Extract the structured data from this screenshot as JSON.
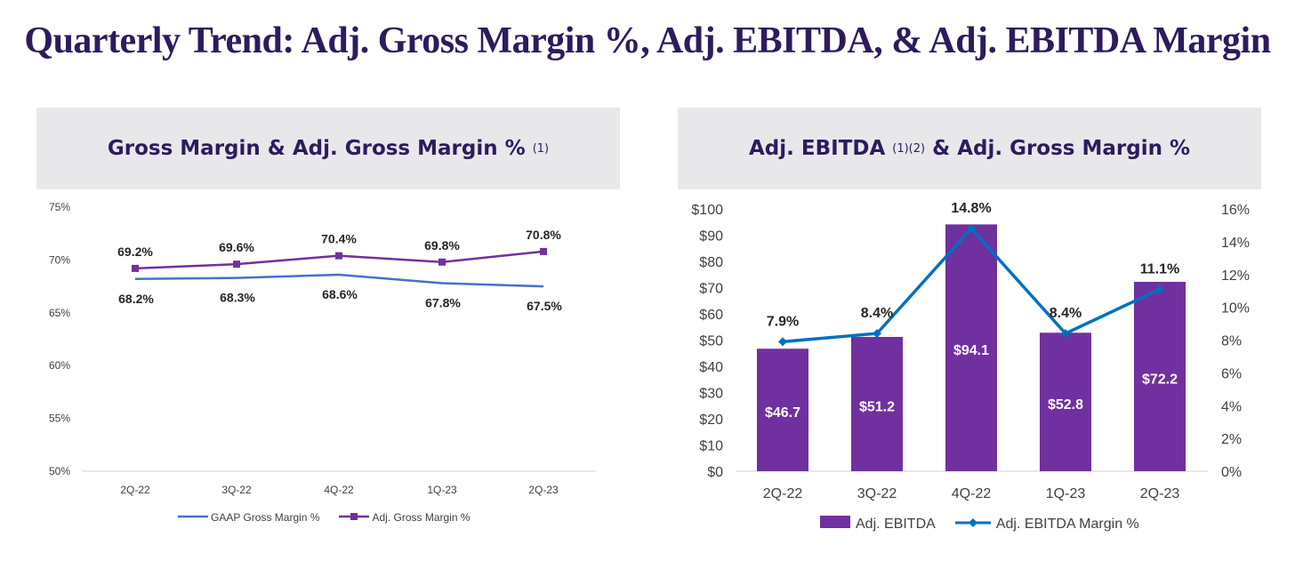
{
  "page": {
    "title": "Quarterly Trend: Adj. Gross Margin %, Adj. EBITDA, & Adj. EBITDA Margin"
  },
  "colors": {
    "title": "#2d1b5e",
    "gaap_line": "#4472c4",
    "adj_gross_line": "#7030a0",
    "ebitda_bar": "#7030a0",
    "ebitda_margin_line": "#0070c0",
    "header_bg": "#e8e8ea"
  },
  "left_panel": {
    "title": "Gross Margin & Adj. Gross Margin %",
    "title_sup": "(1)"
  },
  "right_panel": {
    "title_part1": "Adj. EBITDA",
    "title_sup": "(1)(2)",
    "title_part2": "& Adj. Gross Margin %"
  },
  "chart_data": [
    {
      "type": "line",
      "categories": [
        "2Q-22",
        "3Q-22",
        "4Q-22",
        "1Q-23",
        "2Q-23"
      ],
      "y_ticks": [
        "75%",
        "70%",
        "65%",
        "60%",
        "55%",
        "50%"
      ],
      "ylim": [
        50,
        75
      ],
      "grid": false,
      "legend_position": "bottom",
      "series": [
        {
          "name": "GAAP Gross Margin %",
          "values": [
            68.2,
            68.3,
            68.6,
            67.8,
            67.5
          ],
          "labels": [
            "68.2%",
            "68.3%",
            "68.6%",
            "67.8%",
            "67.5%"
          ],
          "marker": "none"
        },
        {
          "name": "Adj. Gross Margin %",
          "values": [
            69.2,
            69.6,
            70.4,
            69.8,
            70.8
          ],
          "labels": [
            "69.2%",
            "69.6%",
            "70.4%",
            "69.8%",
            "70.8%"
          ],
          "marker": "square"
        }
      ]
    },
    {
      "type": "bar",
      "categories": [
        "2Q-22",
        "3Q-22",
        "4Q-22",
        "1Q-23",
        "2Q-23"
      ],
      "y_ticks": [
        "$100",
        "$90",
        "$80",
        "$70",
        "$60",
        "$50",
        "$40",
        "$30",
        "$20",
        "$10",
        "$0"
      ],
      "y2_ticks": [
        "16%",
        "14%",
        "12%",
        "10%",
        "8%",
        "6%",
        "4%",
        "2%",
        "0%"
      ],
      "ylim": [
        0,
        100
      ],
      "y2lim": [
        0,
        16
      ],
      "grid": false,
      "legend_position": "bottom",
      "series": [
        {
          "name": "Adj. EBITDA",
          "type": "bar",
          "axis": "left",
          "values": [
            46.7,
            51.2,
            94.1,
            52.8,
            72.2
          ],
          "labels": [
            "$46.7",
            "$51.2",
            "$94.1",
            "$52.8",
            "$72.2"
          ]
        },
        {
          "name": "Adj. EBITDA Margin %",
          "type": "line",
          "axis": "right",
          "values": [
            7.9,
            8.4,
            14.8,
            8.4,
            11.1
          ],
          "labels": [
            "7.9%",
            "8.4%",
            "14.8%",
            "8.4%",
            "11.1%"
          ],
          "marker": "diamond"
        }
      ]
    }
  ]
}
